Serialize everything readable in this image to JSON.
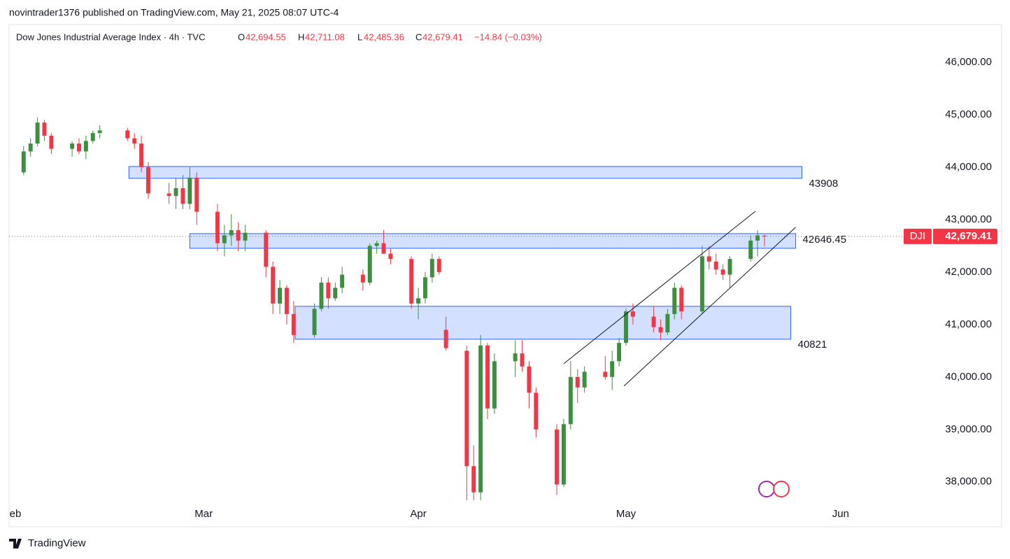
{
  "published_by": "novintrader1376 published on TradingView.com, May 21, 2025 08:07 UTC-4",
  "footer": "TradingView",
  "chart_data": {
    "type": "candlestick",
    "title": "Dow Jones Industrial Average Index · 4h · TVC",
    "ohlc_header": {
      "o_label": "O",
      "o": "42,694.55",
      "h_label": "H",
      "h": "42,711.08",
      "l_label": "L",
      "l": "42,485.36",
      "c_label": "C",
      "c": "42,679.41",
      "change": "−14.84 (−0.03%)"
    },
    "symbol": "DJI",
    "last_price": {
      "value": 42679.41,
      "label": "42,679.41"
    },
    "up_color": "#3b8f3e",
    "down_color": "#f23645",
    "zone_color": "#2962ff",
    "grid": false,
    "x": [
      2,
      3,
      4,
      5,
      6,
      9,
      10,
      11,
      12,
      13,
      17,
      18,
      19,
      20,
      23,
      24,
      25,
      26,
      27,
      30,
      31,
      32,
      33,
      34,
      37,
      38,
      39,
      40,
      41,
      44,
      45,
      46,
      47,
      48,
      51,
      52,
      53,
      54,
      55,
      58,
      59,
      60,
      61,
      62,
      63,
      66,
      67,
      68,
      69,
      70,
      73,
      74,
      75,
      76,
      79,
      80,
      81,
      82,
      83,
      86,
      87,
      88,
      89,
      90,
      93,
      94,
      95,
      96,
      97,
      100,
      101,
      102,
      103,
      104,
      107,
      108,
      109
    ],
    "open": [
      43900,
      44300,
      44450,
      44850,
      44600,
      44350,
      44450,
      44300,
      44500,
      44650,
      44700,
      44550,
      44450,
      44000,
      43500,
      43450,
      43600,
      43300,
      43800,
      43150,
      42550,
      42700,
      42800,
      42600,
      42750,
      42100,
      41400,
      41700,
      41200,
      40800,
      41300,
      41800,
      41500,
      41700,
      41950,
      41800,
      42500,
      42550,
      42350,
      42250,
      41400,
      41500,
      41900,
      42250,
      40900,
      40500,
      38300,
      37800,
      40600,
      39400,
      40300,
      40450,
      40200,
      39700,
      39000,
      37950,
      39100,
      40000,
      39800,
      40100,
      40000,
      40300,
      40650,
      41250,
      41150,
      40950,
      40850,
      41200,
      41700,
      41250,
      42300,
      42200,
      42050,
      41950,
      42250,
      42600,
      42694.55
    ],
    "high": [
      44400,
      44550,
      44950,
      44900,
      44650,
      44500,
      44550,
      44600,
      44700,
      44800,
      44750,
      44650,
      44600,
      44100,
      43700,
      43800,
      43850,
      44000,
      43900,
      43300,
      42900,
      43100,
      42950,
      42900,
      42800,
      42200,
      41850,
      41750,
      41450,
      41400,
      41900,
      41900,
      41800,
      42100,
      42050,
      42550,
      42600,
      42800,
      42450,
      42300,
      41700,
      42000,
      42350,
      42300,
      41150,
      40600,
      38700,
      40800,
      40650,
      40450,
      40700,
      40700,
      40300,
      39800,
      39100,
      39200,
      40300,
      40150,
      40200,
      40400,
      40500,
      40750,
      41300,
      41400,
      41350,
      41100,
      41300,
      41800,
      41750,
      42500,
      42500,
      42350,
      42150,
      42300,
      42700,
      42800,
      42711.08
    ],
    "low": [
      43850,
      44200,
      44400,
      44500,
      44250,
      44200,
      44250,
      44150,
      44450,
      44550,
      44500,
      44350,
      43900,
      43400,
      43300,
      43200,
      43200,
      43200,
      42900,
      42400,
      42300,
      42500,
      42400,
      42400,
      41900,
      41200,
      41200,
      41000,
      40650,
      40750,
      41250,
      41300,
      41450,
      41600,
      41650,
      41750,
      42350,
      42400,
      42150,
      41300,
      41100,
      41400,
      41800,
      41950,
      40500,
      37650,
      37650,
      37650,
      39200,
      39300,
      40000,
      40100,
      39400,
      38850,
      37750,
      37900,
      39000,
      39500,
      39700,
      39950,
      39750,
      40200,
      40600,
      41000,
      40850,
      40700,
      40800,
      41100,
      41100,
      41200,
      42050,
      41950,
      41850,
      41700,
      42200,
      42300,
      42485.36
    ],
    "close": [
      44300,
      44450,
      44850,
      44600,
      44350,
      44450,
      44300,
      44500,
      44650,
      44700,
      44550,
      44450,
      44000,
      43500,
      43450,
      43600,
      43300,
      43800,
      43150,
      42550,
      42700,
      42800,
      42600,
      42750,
      42100,
      41400,
      41700,
      41200,
      40800,
      41300,
      41800,
      41500,
      41700,
      41950,
      41800,
      42500,
      42550,
      42350,
      42250,
      41400,
      41500,
      41900,
      42250,
      42000,
      40550,
      38300,
      37800,
      40600,
      39400,
      40300,
      40450,
      40200,
      39700,
      39000,
      37950,
      39100,
      40000,
      39800,
      40100,
      40000,
      40300,
      40650,
      41250,
      41150,
      40950,
      40850,
      41200,
      41700,
      41250,
      42300,
      42200,
      42050,
      41950,
      42250,
      42600,
      42700,
      42679.41
    ],
    "zones": [
      {
        "from": 17.2,
        "to": 114.4,
        "low": 43787,
        "high": 44013,
        "label": "43908"
      },
      {
        "from": 26,
        "to": 113.5,
        "low": 42453,
        "high": 42733,
        "label": "42646.45"
      },
      {
        "from": 41.2,
        "to": 112.8,
        "low": 40720,
        "high": 41347,
        "label": "40821"
      }
    ],
    "trend_lines": [
      {
        "x1": 80,
        "y1": 40253,
        "x2": 107.7,
        "y2": 43160
      },
      {
        "x1": 88.7,
        "y1": 39827,
        "x2": 113.5,
        "y2": 42853
      }
    ],
    "xlim": [
      -0.1,
      128.9
    ],
    "xticks": [
      {
        "value": 0,
        "label": "eb"
      },
      {
        "value": 28,
        "label": "Mar"
      },
      {
        "value": 59,
        "label": "Apr"
      },
      {
        "value": 89,
        "label": "May"
      },
      {
        "value": 120,
        "label": "Jun"
      }
    ],
    "ylim": [
      37610,
      46720
    ],
    "yticks": [
      {
        "value": 38000,
        "label": "38,000.00"
      },
      {
        "value": 39000,
        "label": "39,000.00"
      },
      {
        "value": 40000,
        "label": "40,000.00"
      },
      {
        "value": 41000,
        "label": "41,000.00"
      },
      {
        "value": 42000,
        "label": "42,000.00"
      },
      {
        "value": 43000,
        "label": "43,000.00"
      },
      {
        "value": 44000,
        "label": "44,000.00"
      },
      {
        "value": 45000,
        "label": "45,000.00"
      },
      {
        "value": 46000,
        "label": "46,000.00"
      }
    ]
  }
}
